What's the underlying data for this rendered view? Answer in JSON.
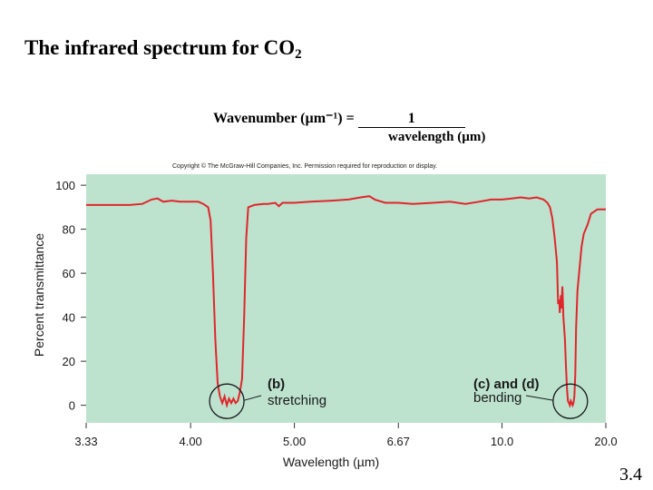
{
  "slide": {
    "title_text": "The infrared spectrum for CO",
    "title_subscript": "2",
    "formula_lhs": "Wavenumber (µm⁻¹) = ",
    "formula_numerator": "1",
    "formula_denominator": "wavelength (µm)",
    "page_number": "3.4"
  },
  "chart_data": {
    "type": "line",
    "title": "",
    "copyright": "Copyright © The McGraw-Hill Companies, Inc. Permission required for reproduction or display.",
    "xlabel": "Wavelength (µm)",
    "ylabel": "Percent transmittance",
    "x_ticks": [
      "3.33",
      "4.00",
      "5.00",
      "6.67",
      "10.0",
      "20.0"
    ],
    "x_scale": "wavenumber (reciprocal of wavelength)",
    "y_ticks": [
      "0",
      "20",
      "40",
      "60",
      "80",
      "100"
    ],
    "ylim": [
      -8,
      105
    ],
    "xlim": [
      3.33,
      20.0
    ],
    "grid": false,
    "background_color": "#bde3cf",
    "line_color": "#e0262b",
    "circle_color": "#1a1a1a",
    "series": [
      {
        "values": [
          [
            3.33,
            91
          ],
          [
            3.45,
            91
          ],
          [
            3.58,
            91
          ],
          [
            3.66,
            91.5
          ],
          [
            3.72,
            93.5
          ],
          [
            3.76,
            94
          ],
          [
            3.8,
            92.5
          ],
          [
            3.86,
            93
          ],
          [
            3.92,
            92.5
          ],
          [
            3.98,
            92.5
          ],
          [
            4.06,
            92.5
          ],
          [
            4.1,
            91.5
          ],
          [
            4.14,
            90
          ],
          [
            4.16,
            84
          ],
          [
            4.18,
            60
          ],
          [
            4.2,
            30
          ],
          [
            4.22,
            10
          ],
          [
            4.24,
            4
          ],
          [
            4.26,
            1
          ],
          [
            4.28,
            4
          ],
          [
            4.3,
            0
          ],
          [
            4.32,
            3
          ],
          [
            4.34,
            1
          ],
          [
            4.36,
            3
          ],
          [
            4.38,
            1
          ],
          [
            4.4,
            2
          ],
          [
            4.42,
            6
          ],
          [
            4.44,
            12
          ],
          [
            4.46,
            40
          ],
          [
            4.48,
            76
          ],
          [
            4.5,
            90
          ],
          [
            4.56,
            91
          ],
          [
            4.65,
            91.5
          ],
          [
            4.7,
            91.5
          ],
          [
            4.78,
            92
          ],
          [
            4.82,
            90.5
          ],
          [
            4.86,
            92
          ],
          [
            5.0,
            92
          ],
          [
            5.2,
            92.5
          ],
          [
            5.5,
            93
          ],
          [
            5.75,
            93.5
          ],
          [
            5.95,
            94.5
          ],
          [
            6.1,
            95
          ],
          [
            6.2,
            93.5
          ],
          [
            6.4,
            92
          ],
          [
            6.67,
            92
          ],
          [
            7.0,
            91.5
          ],
          [
            7.5,
            92
          ],
          [
            8.0,
            92.5
          ],
          [
            8.5,
            91.5
          ],
          [
            9.0,
            92.5
          ],
          [
            9.5,
            93.5
          ],
          [
            10.0,
            93.5
          ],
          [
            10.5,
            94
          ],
          [
            11.0,
            94.5
          ],
          [
            11.5,
            94
          ],
          [
            12.0,
            94.5
          ],
          [
            12.5,
            93.5
          ],
          [
            12.8,
            92
          ],
          [
            13.0,
            90
          ],
          [
            13.2,
            85
          ],
          [
            13.4,
            76
          ],
          [
            13.6,
            65
          ],
          [
            13.7,
            46
          ],
          [
            13.8,
            48
          ],
          [
            13.85,
            42
          ],
          [
            13.95,
            50
          ],
          [
            14.0,
            44
          ],
          [
            14.1,
            54
          ],
          [
            14.2,
            40
          ],
          [
            14.35,
            30
          ],
          [
            14.45,
            18
          ],
          [
            14.55,
            8
          ],
          [
            14.65,
            2
          ],
          [
            14.75,
            1
          ],
          [
            14.85,
            0
          ],
          [
            14.95,
            2
          ],
          [
            15.05,
            1
          ],
          [
            15.15,
            0
          ],
          [
            15.25,
            1
          ],
          [
            15.35,
            4
          ],
          [
            15.45,
            14
          ],
          [
            15.55,
            35
          ],
          [
            15.7,
            52
          ],
          [
            15.9,
            60
          ],
          [
            16.2,
            72
          ],
          [
            16.5,
            78
          ],
          [
            17.0,
            82
          ],
          [
            17.5,
            87
          ],
          [
            18.5,
            89
          ],
          [
            20.0,
            89
          ]
        ]
      }
    ],
    "annotations": [
      {
        "bold": "(b)",
        "text": "stretching",
        "x": 4.3,
        "y": 1
      },
      {
        "bold": "(c) and (d)",
        "text": "bending",
        "x": 14.9,
        "y": 1
      }
    ]
  }
}
